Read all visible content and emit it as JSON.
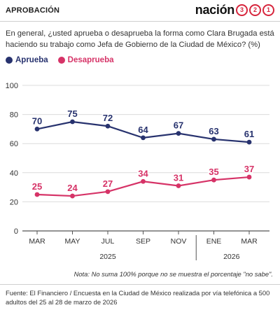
{
  "header": {
    "kicker": "APROBACIÓN",
    "brand_word": "nación",
    "brand_digits": [
      "3",
      "2",
      "1"
    ],
    "brand_color": "#d7263d"
  },
  "question": "En general, ¿usted aprueba o desaprueba la forma como Clara Brugada está haciendo su trabajo como Jefa de Gobierno de la Ciudad de México? (%)",
  "note": "Nota: No suma 100% porque no se muestra el porcentaje \"no sabe\".",
  "source": "Fuente: El Financiero /  Encuesta en la Ciudad de México realizada por vía telefónica a 500 adultos del 25 al 28 de marzo de 2026",
  "chart_data": {
    "type": "line",
    "categories": [
      "MAR",
      "MAY",
      "JUL",
      "SEP",
      "NOV",
      "ENE",
      "MAR"
    ],
    "year_labels": [
      {
        "label": "2025",
        "from": 0,
        "to": 4
      },
      {
        "label": "2026",
        "from": 5,
        "to": 6
      }
    ],
    "series": [
      {
        "name": "Aprueba",
        "color": "#27326e",
        "values": [
          70,
          75,
          72,
          64,
          67,
          63,
          61
        ]
      },
      {
        "name": "Desaprueba",
        "color": "#d63367",
        "values": [
          25,
          24,
          27,
          34,
          31,
          35,
          37
        ]
      }
    ],
    "ylim": [
      0,
      100
    ],
    "yticks": [
      0,
      20,
      40,
      60,
      80,
      100
    ],
    "grid": true,
    "legend_position": "top-left"
  }
}
